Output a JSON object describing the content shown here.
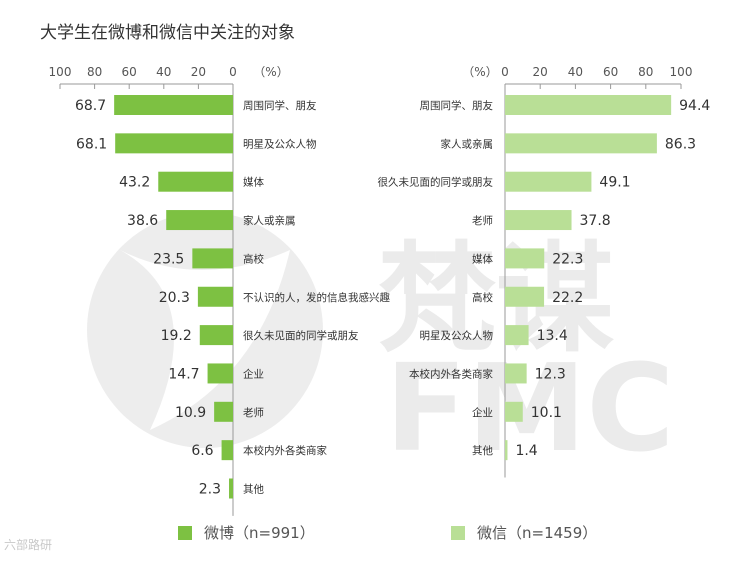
{
  "title": "大学生在微博和微信中关注的对象",
  "chart_data": [
    {
      "type": "bar",
      "orientation": "horizontal",
      "direction": "right-to-left",
      "unit_label": "（%）",
      "xlim": [
        0,
        100
      ],
      "ticks": [
        100,
        80,
        60,
        40,
        20,
        0
      ],
      "categories": [
        "周围同学、朋友",
        "明星及公众人物",
        "媒体",
        "家人或亲属",
        "高校",
        "不认识的人，发的信息我感兴趣",
        "很久未见面的同学或朋友",
        "企业",
        "老师",
        "本校内外各类商家",
        "其他"
      ],
      "values": [
        68.7,
        68.1,
        43.2,
        38.6,
        23.5,
        20.3,
        19.2,
        14.7,
        10.9,
        6.6,
        2.3
      ],
      "legend": "微博（n=991）",
      "color": "#7dc142"
    },
    {
      "type": "bar",
      "orientation": "horizontal",
      "direction": "left-to-right",
      "unit_label": "（%）",
      "xlim": [
        0,
        100
      ],
      "ticks": [
        0,
        20,
        40,
        60,
        80,
        100
      ],
      "categories": [
        "周围同学、朋友",
        "家人或亲属",
        "很久未见面的同学或朋友",
        "老师",
        "媒体",
        "高校",
        "明星及公众人物",
        "本校内外各类商家",
        "企业",
        "其他"
      ],
      "values": [
        94.4,
        86.3,
        49.1,
        37.8,
        22.3,
        22.2,
        13.4,
        12.3,
        10.1,
        1.4
      ],
      "legend": "微信（n=1459）",
      "color": "#b9df96"
    }
  ],
  "watermark": {
    "line1": "梵谋",
    "line2": "FMC"
  },
  "source_mark": "六部路研",
  "colors": {
    "axis": "#999999",
    "text": "#333333",
    "watermark": "#ebebeb"
  }
}
